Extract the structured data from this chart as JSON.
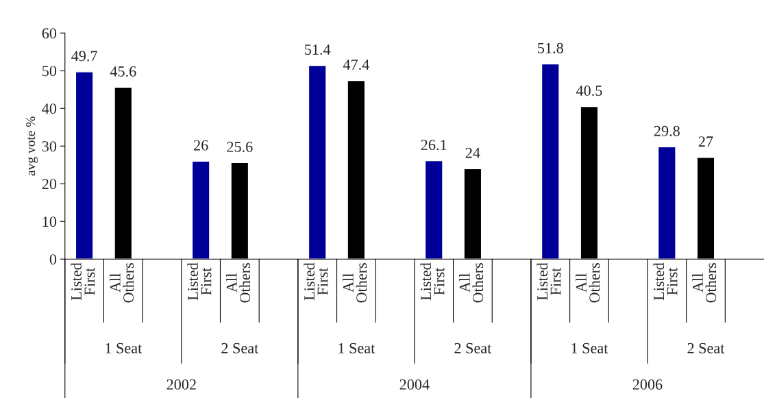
{
  "chart_data": {
    "type": "bar",
    "ylabel": "avg vote %",
    "categories": [
      "Listed\nFirst",
      "All\nOthers",
      null,
      "Listed\nFirst",
      "All\nOthers",
      null,
      "Listed\nFirst",
      "All\nOthers",
      null,
      "Listed\nFirst",
      "All\nOthers",
      null,
      "Listed\nFirst",
      "All\nOthers",
      null,
      "Listed\nFirst",
      "All\nOthers",
      null
    ],
    "values": [
      49.7,
      45.6,
      null,
      26,
      25.6,
      null,
      51.4,
      47.4,
      null,
      26.1,
      24,
      null,
      51.8,
      40.5,
      null,
      29.8,
      27,
      null
    ],
    "colors": [
      "#000099",
      "#000000",
      null,
      "#000099",
      "#000000",
      null,
      "#000099",
      "#000000",
      null,
      "#000099",
      "#000000",
      null,
      "#000099",
      "#000000",
      null,
      "#000099",
      "#000000",
      null
    ],
    "data_labels": true,
    "ylim": [
      0,
      60
    ],
    "yticks": [
      0,
      10,
      20,
      30,
      40,
      50,
      60
    ],
    "grid": false,
    "legend": false,
    "annotations": [
      "1 Seat",
      "2 Seat",
      "1 Seat",
      "2 Seat",
      "1 Seat",
      "2 Seat",
      "2002",
      "2004",
      "2006"
    ]
  }
}
